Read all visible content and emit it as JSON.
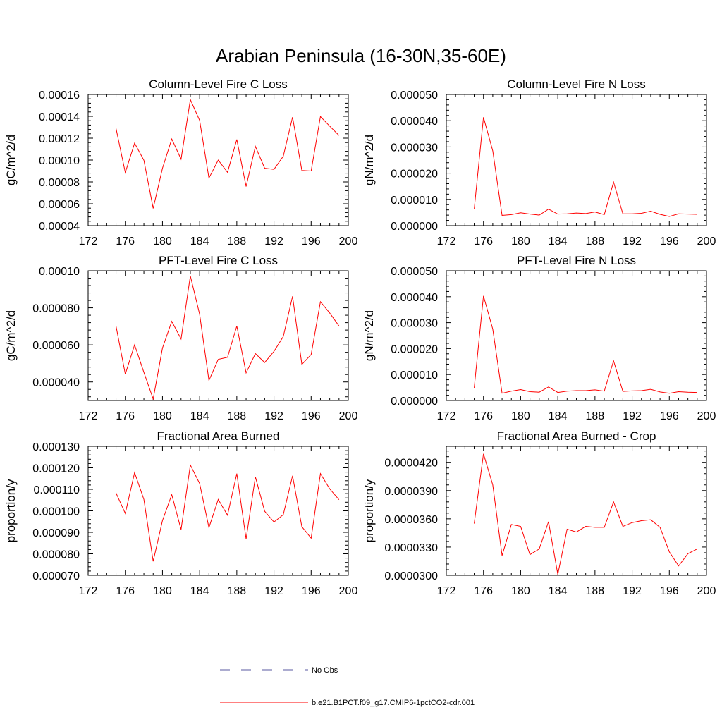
{
  "title": "Arabian Peninsula (16-30N,35-60E)",
  "legend": {
    "placement": "bottom-center",
    "entries": [
      {
        "label": "No Obs",
        "color": "#5a5aa0",
        "dash": true
      },
      {
        "label": "b.e21.B1PCT.f09_g17.CMIP6-1pctCO2-cdr.001",
        "color": "#ff0000",
        "dash": false
      }
    ]
  },
  "chart_data": [
    {
      "type": "line",
      "title": "Column-Level Fire C Loss",
      "ylabel": "gC/m^2/d",
      "xlim": [
        172,
        200
      ],
      "ylim": [
        4e-05,
        0.00016
      ],
      "xticks": [
        172,
        176,
        180,
        184,
        188,
        192,
        196,
        200
      ],
      "xtick_labels": [
        "172",
        "176",
        "180",
        "184",
        "188",
        "192",
        "196",
        "200"
      ],
      "yticks": [
        4e-05,
        6e-05,
        8e-05,
        0.0001,
        0.00012,
        0.00014,
        0.00016
      ],
      "ytick_labels": [
        "0.00004",
        "0.00006",
        "0.00008",
        "0.00010",
        "0.00012",
        "0.00014",
        "0.00016"
      ],
      "x": [
        175,
        176,
        177,
        178,
        179,
        180,
        181,
        182,
        183,
        184,
        185,
        186,
        187,
        188,
        189,
        190,
        191,
        192,
        193,
        194,
        195,
        196,
        197,
        198,
        199
      ],
      "y": [
        0.000129,
        8.85e-05,
        0.0001155,
        9.98e-05,
        5.58e-05,
        9.25e-05,
        0.0001193,
        0.0001008,
        0.0001553,
        0.0001363,
        8.35e-05,
        0.0001,
        8.88e-05,
        0.0001188,
        7.58e-05,
        0.0001125,
        9.25e-05,
        9.15e-05,
        0.0001035,
        0.0001393,
        9.05e-05,
        9e-05,
        0.0001398,
        0.000131,
        0.0001225
      ],
      "color": "#ff0000"
    },
    {
      "type": "line",
      "title": "Column-Level Fire N Loss",
      "ylabel": "gN/m^2/d",
      "xlim": [
        172,
        200
      ],
      "ylim": [
        0,
        5e-05
      ],
      "xticks": [
        172,
        176,
        180,
        184,
        188,
        192,
        196,
        200
      ],
      "xtick_labels": [
        "172",
        "176",
        "180",
        "184",
        "188",
        "192",
        "196",
        "200"
      ],
      "yticks": [
        0,
        1e-05,
        2e-05,
        3e-05,
        4e-05,
        5e-05
      ],
      "ytick_labels": [
        "0.000000",
        "0.000010",
        "0.000020",
        "0.000030",
        "0.000040",
        "0.000050"
      ],
      "x": [
        175,
        176,
        177,
        178,
        179,
        180,
        181,
        182,
        183,
        184,
        185,
        186,
        187,
        188,
        189,
        190,
        191,
        192,
        193,
        194,
        195,
        196,
        197,
        198,
        199
      ],
      "y": [
        6.2e-06,
        4.13e-05,
        2.85e-05,
        3.9e-06,
        4.2e-06,
        4.9e-06,
        4.4e-06,
        4e-06,
        6.3e-06,
        4.4e-06,
        4.5e-06,
        4.8e-06,
        4.6e-06,
        5.2e-06,
        4.2e-06,
        1.66e-05,
        4.5e-06,
        4.5e-06,
        4.7e-06,
        5.5e-06,
        4.3e-06,
        3.5e-06,
        4.5e-06,
        4.4e-06,
        4.3e-06
      ],
      "color": "#ff0000"
    },
    {
      "type": "line",
      "title": "PFT-Level Fire C Loss",
      "ylabel": "gC/m^2/d",
      "xlim": [
        172,
        200
      ],
      "ylim": [
        3e-05,
        0.0001
      ],
      "xticks": [
        172,
        176,
        180,
        184,
        188,
        192,
        196,
        200
      ],
      "xtick_labels": [
        "172",
        "176",
        "180",
        "184",
        "188",
        "192",
        "196",
        "200"
      ],
      "yticks": [
        4e-05,
        6e-05,
        8e-05,
        0.0001
      ],
      "ytick_labels": [
        "0.000040",
        "0.000060",
        "0.000080",
        "0.00010"
      ],
      "x": [
        175,
        176,
        177,
        178,
        179,
        180,
        181,
        182,
        183,
        184,
        185,
        186,
        187,
        188,
        189,
        190,
        191,
        192,
        193,
        194,
        195,
        196,
        197,
        198,
        199
      ],
      "y": [
        7.02e-05,
        4.42e-05,
        6e-05,
        4.52e-05,
        3.08e-05,
        5.83e-05,
        7.27e-05,
        6.32e-05,
        9.72e-05,
        7.65e-05,
        4.08e-05,
        5.22e-05,
        5.33e-05,
        7.02e-05,
        4.49e-05,
        5.53e-05,
        5.05e-05,
        5.65e-05,
        6.45e-05,
        8.62e-05,
        4.95e-05,
        5.48e-05,
        8.33e-05,
        7.72e-05,
        7.02e-05
      ],
      "color": "#ff0000"
    },
    {
      "type": "line",
      "title": "PFT-Level Fire N Loss",
      "ylabel": "gN/m^2/d",
      "xlim": [
        172,
        200
      ],
      "ylim": [
        0,
        5e-05
      ],
      "xticks": [
        172,
        176,
        180,
        184,
        188,
        192,
        196,
        200
      ],
      "xtick_labels": [
        "172",
        "176",
        "180",
        "184",
        "188",
        "192",
        "196",
        "200"
      ],
      "yticks": [
        0,
        1e-05,
        2e-05,
        3e-05,
        4e-05,
        5e-05
      ],
      "ytick_labels": [
        "0.000000",
        "0.000010",
        "0.000020",
        "0.000030",
        "0.000040",
        "0.000050"
      ],
      "x": [
        175,
        176,
        177,
        178,
        179,
        180,
        181,
        182,
        183,
        184,
        185,
        186,
        187,
        188,
        189,
        190,
        191,
        192,
        193,
        194,
        195,
        196,
        197,
        198,
        199
      ],
      "y": [
        4.8e-06,
        4.03e-05,
        2.75e-05,
        2.8e-06,
        3.6e-06,
        4.2e-06,
        3.4e-06,
        3.2e-06,
        5.2e-06,
        3.1e-06,
        3.6e-06,
        3.8e-06,
        3.8e-06,
        4.1e-06,
        3.6e-06,
        1.53e-05,
        3.5e-06,
        3.7e-06,
        3.8e-06,
        4.3e-06,
        3.3e-06,
        2.8e-06,
        3.4e-06,
        3.2e-06,
        3.1e-06
      ],
      "color": "#ff0000"
    },
    {
      "type": "line",
      "title": "Fractional Area Burned",
      "ylabel": "proportion/y",
      "xlim": [
        172,
        200
      ],
      "ylim": [
        7e-05,
        0.00013
      ],
      "xticks": [
        172,
        176,
        180,
        184,
        188,
        192,
        196,
        200
      ],
      "xtick_labels": [
        "172",
        "176",
        "180",
        "184",
        "188",
        "192",
        "196",
        "200"
      ],
      "yticks": [
        7e-05,
        8e-05,
        9e-05,
        0.0001,
        0.00011,
        0.00012,
        0.00013
      ],
      "ytick_labels": [
        "0.000070",
        "0.000080",
        "0.000090",
        "0.000100",
        "0.000110",
        "0.000120",
        "0.000130"
      ],
      "x": [
        175,
        176,
        177,
        178,
        179,
        180,
        181,
        182,
        183,
        184,
        185,
        186,
        187,
        188,
        189,
        190,
        191,
        192,
        193,
        194,
        195,
        196,
        197,
        198,
        199
      ],
      "y": [
        0.0001083,
        9.88e-05,
        0.0001178,
        0.0001053,
        7.65e-05,
        9.55e-05,
        0.0001075,
        9.13e-05,
        0.0001213,
        0.0001127,
        9.22e-05,
        0.0001053,
        9.8e-05,
        0.0001173,
        8.69e-05,
        0.0001158,
        9.98e-05,
        9.48e-05,
        9.82e-05,
        0.0001163,
        9.26e-05,
        8.73e-05,
        0.0001173,
        0.0001102,
        0.0001052
      ],
      "color": "#ff0000"
    },
    {
      "type": "line",
      "title": "Fractional Area Burned - Crop",
      "ylabel": "proportion/y",
      "xlim": [
        172,
        200
      ],
      "ylim": [
        3e-05,
        4.37e-05
      ],
      "xticks": [
        172,
        176,
        180,
        184,
        188,
        192,
        196,
        200
      ],
      "xtick_labels": [
        "172",
        "176",
        "180",
        "184",
        "188",
        "192",
        "196",
        "200"
      ],
      "yticks": [
        3e-05,
        3.3e-05,
        3.6e-05,
        3.9e-05,
        4.2e-05
      ],
      "ytick_labels": [
        "0.0000300",
        "0.0000330",
        "0.0000360",
        "0.0000390",
        "0.0000420"
      ],
      "x": [
        175,
        176,
        177,
        178,
        179,
        180,
        181,
        182,
        183,
        184,
        185,
        186,
        187,
        188,
        189,
        190,
        191,
        192,
        193,
        194,
        195,
        196,
        197,
        198,
        199
      ],
      "y": [
        3.55e-05,
        4.29e-05,
        3.96e-05,
        3.21e-05,
        3.54e-05,
        3.52e-05,
        3.22e-05,
        3.28e-05,
        3.57e-05,
        3.01e-05,
        3.49e-05,
        3.46e-05,
        3.52e-05,
        3.51e-05,
        3.51e-05,
        3.78e-05,
        3.52e-05,
        3.56e-05,
        3.58e-05,
        3.59e-05,
        3.51e-05,
        3.25e-05,
        3.1e-05,
        3.23e-05,
        3.28e-05
      ],
      "color": "#ff0000"
    }
  ]
}
